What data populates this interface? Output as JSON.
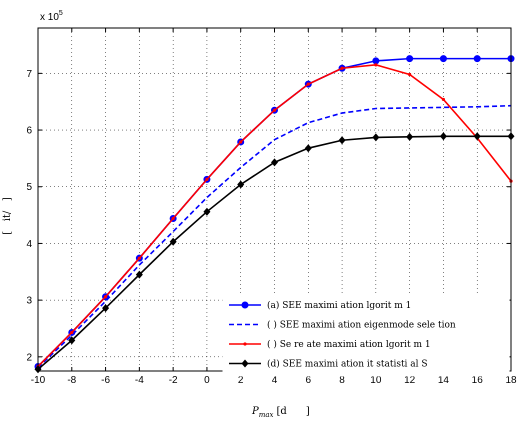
{
  "chart_data": {
    "type": "line",
    "title": "",
    "xlabel_main": "P",
    "xlabel_sub": "max",
    "xlabel_unit": "[d      ]",
    "ylabel": "[   it/   ]",
    "y_exponent_label": "x 10",
    "y_exponent_power": "5",
    "xlim": [
      -10,
      18
    ],
    "ylim": [
      175000,
      780000
    ],
    "x_ticks": [
      -10,
      -8,
      -6,
      -4,
      -2,
      0,
      2,
      4,
      6,
      8,
      10,
      12,
      14,
      16,
      18
    ],
    "y_ticks": [
      2,
      3,
      4,
      5,
      6,
      7
    ],
    "y_tick_scale": 100000,
    "grid": true,
    "legend_position": "bottom-right",
    "x": [
      -10,
      -8,
      -6,
      -4,
      -2,
      0,
      2,
      4,
      6,
      8,
      10,
      12,
      14,
      16,
      18
    ],
    "series": [
      {
        "name": "(a) SEE maximi ation      lgorit  m 1",
        "color": "#0000ff",
        "style": "solid",
        "marker": "circle",
        "values": [
          183000,
          243000,
          306000,
          374000,
          444000,
          513000,
          579000,
          635000,
          681000,
          709000,
          722000,
          726000,
          726000,
          726000,
          726000
        ]
      },
      {
        "name": "(   ) SEE maximi  ation     eigenmode sele  tion",
        "color": "#0000ff",
        "style": "dashed",
        "marker": "none",
        "values": [
          181000,
          238000,
          298000,
          362000,
          421000,
          481000,
          534000,
          583000,
          613000,
          630000,
          638000,
          639000,
          640000,
          641000,
          643000
        ]
      },
      {
        "name": "(   ) Se re        ate maximi ation        lgorit  m 1",
        "color": "#ff0000",
        "style": "solid",
        "marker": "point",
        "values": [
          183000,
          243000,
          306000,
          374000,
          444000,
          513000,
          579000,
          635000,
          681000,
          709000,
          715000,
          698000,
          654000,
          586000,
          510000
        ]
      },
      {
        "name": "(d) SEE maximi ation    it   statisti  al   S",
        "color": "#000000",
        "style": "solid",
        "marker": "diamond",
        "values": [
          178000,
          229000,
          286000,
          345000,
          403000,
          456000,
          504000,
          543000,
          568000,
          582000,
          587000,
          588000,
          589000,
          589000,
          589000
        ]
      }
    ]
  }
}
